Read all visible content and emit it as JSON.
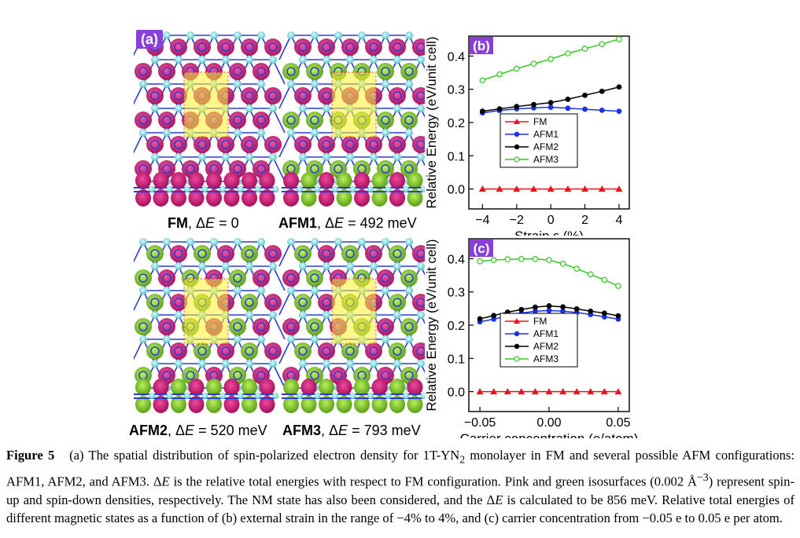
{
  "panel_a": {
    "label": "(a)",
    "captions": [
      {
        "name": "FM",
        "rest": ", ΔE = 0",
        "delta": "ΔE",
        "eq": " = 0"
      },
      {
        "name": "AFM1",
        "rest": ", ΔE = 492 meV",
        "delta": "ΔE",
        "eq": " = 492 meV"
      },
      {
        "name": "AFM2",
        "rest": ", ΔE = 520 meV",
        "delta": "ΔE",
        "eq": " = 520 meV"
      },
      {
        "name": "AFM3",
        "rest": ", ΔE = 793 meV",
        "delta": "ΔE",
        "eq": " = 793 meV"
      }
    ]
  },
  "colors": {
    "spin_up": "#c8186e",
    "spin_down": "#7cc22a",
    "atom": "#7fd6dc",
    "bond": "#2a3fd0",
    "cell": "#ffef30",
    "fm": "#e8141b",
    "afm1": "#1a33e6",
    "afm2": "#000000",
    "afm3": "#33c821",
    "panel_label": "#8b3fd9"
  },
  "chart_data": [
    {
      "type": "line",
      "panel_label": "(b)",
      "xlabel": "Strain ε (%)",
      "ylabel": "Relative Energy (eV/unit cell)",
      "xlim": [
        -4.8,
        4.6
      ],
      "ylim": [
        -0.06,
        0.46
      ],
      "xticks": [
        -4,
        -2,
        0,
        2,
        4
      ],
      "xtick_labels": [
        "−4",
        "−2",
        "0",
        "2",
        "4"
      ],
      "yticks": [
        0.0,
        0.1,
        0.2,
        0.3,
        0.4
      ],
      "ytick_labels": [
        "0.0",
        "0.1",
        "0.2",
        "0.3",
        "0.4"
      ],
      "x": [
        -4,
        -3,
        -2,
        -1,
        0,
        1,
        2,
        3,
        4
      ],
      "legend_position": "center-left",
      "series": [
        {
          "name": "FM",
          "color": "#e8141b",
          "marker": "triangle",
          "values": [
            0,
            0,
            0,
            0,
            0,
            0,
            0,
            0,
            0
          ]
        },
        {
          "name": "AFM1",
          "color": "#1a33e6",
          "marker": "circle",
          "values": [
            0.229,
            0.236,
            0.241,
            0.244,
            0.246,
            0.243,
            0.24,
            0.237,
            0.234
          ]
        },
        {
          "name": "AFM2",
          "color": "#000000",
          "marker": "circle",
          "values": [
            0.234,
            0.241,
            0.248,
            0.254,
            0.26,
            0.27,
            0.282,
            0.294,
            0.307
          ]
        },
        {
          "name": "AFM3",
          "color": "#33c821",
          "marker": "circle",
          "values": [
            0.327,
            0.345,
            0.362,
            0.377,
            0.391,
            0.408,
            0.422,
            0.436,
            0.451
          ]
        }
      ]
    },
    {
      "type": "line",
      "panel_label": "(c)",
      "xlabel": "Carrier concentration (e/atom)",
      "ylabel": "Relative Energy (eV/unit cell)",
      "xlim": [
        -0.058,
        0.058
      ],
      "ylim": [
        -0.06,
        0.46
      ],
      "xticks": [
        -0.05,
        0.0,
        0.05
      ],
      "xtick_labels": [
        "−0.05",
        "0.00",
        "0.05"
      ],
      "yticks": [
        0.0,
        0.1,
        0.2,
        0.3,
        0.4
      ],
      "ytick_labels": [
        "0.0",
        "0.1",
        "0.2",
        "0.3",
        "0.4"
      ],
      "x": [
        -0.05,
        -0.04,
        -0.03,
        -0.02,
        -0.01,
        0.0,
        0.01,
        0.02,
        0.03,
        0.04,
        0.05
      ],
      "legend_position": "center-left",
      "series": [
        {
          "name": "FM",
          "color": "#e8141b",
          "marker": "triangle",
          "values": [
            0,
            0,
            0,
            0,
            0,
            0,
            0,
            0,
            0,
            0,
            0
          ]
        },
        {
          "name": "AFM1",
          "color": "#1a33e6",
          "marker": "circle",
          "values": [
            0.21,
            0.218,
            0.228,
            0.236,
            0.242,
            0.244,
            0.242,
            0.238,
            0.232,
            0.225,
            0.218
          ]
        },
        {
          "name": "AFM2",
          "color": "#000000",
          "marker": "circle",
          "values": [
            0.219,
            0.229,
            0.239,
            0.247,
            0.254,
            0.258,
            0.255,
            0.249,
            0.242,
            0.236,
            0.228
          ]
        },
        {
          "name": "AFM3",
          "color": "#33c821",
          "marker": "circle",
          "values": [
            0.392,
            0.396,
            0.398,
            0.399,
            0.399,
            0.396,
            0.385,
            0.37,
            0.353,
            0.336,
            0.318
          ]
        }
      ]
    }
  ],
  "figure_caption": {
    "label": "Figure 5",
    "p1": "(a) The spatial distribution of spin-polarized electron density for 1T-YN",
    "sub2": "2",
    "p2": " monolayer in FM and several possible AFM configurations: AFM1, AFM2, and AFM3. ",
    "delta_e": "ΔE",
    "p3": " is the relative total energies with respect to FM configuration. Pink and green isosurfaces (0.002 Å",
    "sup": "−3",
    "p4": ") represent spin-up and spin-down densities, respectively. The NM state has also been considered, and the ",
    "p5": " is calculated to be 856 meV. Relative total energies of different magnetic states as a function of (b) external strain in the range of −4% to 4%, and (c) carrier concentration from −0.05 e to 0.05 e per atom."
  }
}
